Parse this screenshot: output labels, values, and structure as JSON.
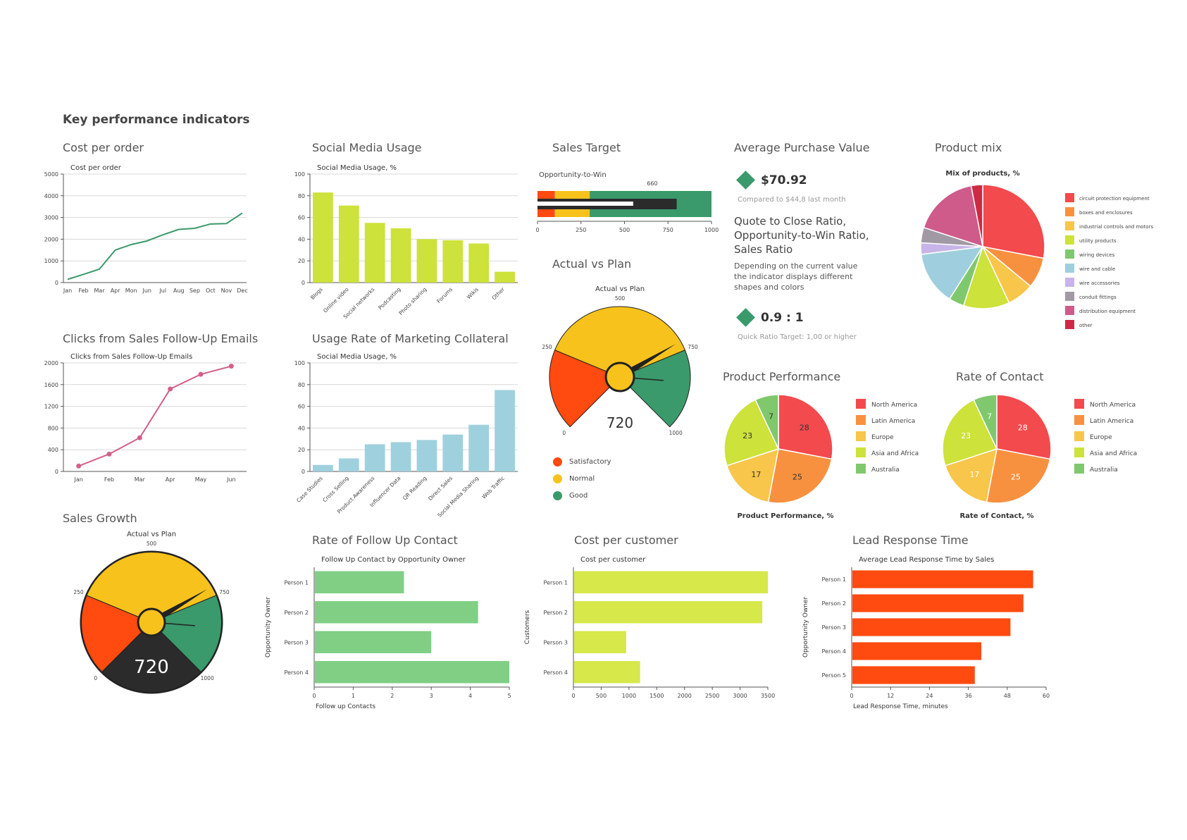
{
  "page_title": "Key performance indicators",
  "panels": {
    "cost_per_order": "Cost per order",
    "social_media": "Social Media Usage",
    "sales_target": "Sales Target",
    "avg_purchase": "Average Purchase Value",
    "product_mix": "Product mix",
    "clicks": "Clicks from Sales Follow-Up Emails",
    "usage_rate": "Usage Rate of Marketing Collateral",
    "actual_vs_plan": "Actual vs Plan",
    "product_performance": "Product Performance",
    "rate_of_contact": "Rate of Contact",
    "sales_growth": "Sales Growth",
    "follow_up": "Rate of Follow Up Contact",
    "cost_per_customer": "Cost per customer",
    "lead_response": "Lead Response Time"
  },
  "kpi": {
    "value": "$70.92",
    "compared": "Compared to $44,8 last month",
    "ratio_heading": "Quote to Close Ratio, Opportunity-to-Win Ratio, Sales Ratio",
    "description": "Depending on the current value the indicator displays different shapes and colors",
    "ratio_value": "0.9 : 1",
    "ratio_target": "Quick Ratio Target: 1,00 or higher",
    "accent": "#3a9a6b"
  },
  "gauge_legend": [
    {
      "label": "Satisfactory",
      "color": "#ff4a10"
    },
    {
      "label": "Normal",
      "color": "#f7c21c"
    },
    {
      "label": "Good",
      "color": "#3a9a6b"
    }
  ],
  "chart_data": [
    {
      "id": "cost_per_order",
      "type": "line",
      "title": "Cost per order",
      "categories": [
        "Jan",
        "Feb",
        "Mar",
        "Apr",
        "Mon",
        "Jun",
        "Jul",
        "Aug",
        "Sep",
        "Oct",
        "Nov",
        "Dec"
      ],
      "values": [
        150,
        380,
        620,
        1500,
        1750,
        1920,
        2200,
        2450,
        2500,
        2700,
        2720,
        3200
      ],
      "ylim": [
        0,
        5000
      ],
      "yticks": [
        "0",
        "1000",
        "2000",
        "3000",
        "4000",
        "5000"
      ],
      "color": "#3a9a6b"
    },
    {
      "id": "social_media",
      "type": "bar",
      "title": "Social Media Usage, %",
      "categories": [
        "Blogs",
        "Online video",
        "Social networks",
        "Podcasting",
        "Photo sharing",
        "Forums",
        "Wikis",
        "Other"
      ],
      "values": [
        83,
        71,
        55,
        50,
        40,
        39,
        36,
        10
      ],
      "ylim": [
        0,
        100
      ],
      "yticks": [
        "0",
        "20",
        "40",
        "60",
        "80",
        "100"
      ],
      "color": "#cde23a"
    },
    {
      "id": "clicks",
      "type": "line",
      "title": "Clicks from Sales Follow-Up Emails",
      "categories": [
        "Jan",
        "Feb",
        "Mar",
        "Apr",
        "May",
        "Jun"
      ],
      "values": [
        100,
        320,
        620,
        1520,
        1790,
        1940
      ],
      "ylim": [
        0,
        2000
      ],
      "yticks": [
        "0",
        "400",
        "800",
        "1200",
        "1600",
        "2000"
      ],
      "color": "#d1608a"
    },
    {
      "id": "usage_rate",
      "type": "bar",
      "title": "Social Media Usage, %",
      "categories": [
        "Case Studies",
        "Cross Selling",
        "Product Awareness",
        "Influencer Data",
        "QR Reading",
        "Direct Sales",
        "Social Media Sharing",
        "Web Traffic"
      ],
      "values": [
        6,
        12,
        25,
        27,
        29,
        34,
        43,
        75
      ],
      "ylim": [
        0,
        100
      ],
      "yticks": [
        "0",
        "20",
        "40",
        "60",
        "80",
        "100"
      ],
      "color": "#9fd0de"
    },
    {
      "id": "sales_target",
      "type": "bullet",
      "title": "Opportunity-to-Win",
      "target_label": "660",
      "target": 660,
      "bar_value": 800,
      "inner_value": 550,
      "ranges": [
        {
          "to": 100,
          "color": "#ff4a10"
        },
        {
          "to": 300,
          "color": "#f7c21c"
        },
        {
          "to": 1000,
          "color": "#3a9a6b"
        }
      ],
      "xlim": [
        0,
        1000
      ],
      "xticks": [
        "0",
        "250",
        "500",
        "750",
        "1000"
      ]
    },
    {
      "id": "actual_vs_plan",
      "type": "gauge",
      "title": "Actual vs Plan",
      "value": 720,
      "value_label": "720",
      "range": [
        0,
        1000
      ],
      "ticks": [
        "0",
        "250",
        "500",
        "750",
        "1000"
      ],
      "bands": [
        {
          "from": 0,
          "to": 250,
          "color": "#ff4a10"
        },
        {
          "from": 250,
          "to": 750,
          "color": "#f7c21c"
        },
        {
          "from": 750,
          "to": 1000,
          "color": "#3a9a6b"
        }
      ]
    },
    {
      "id": "sales_growth",
      "type": "gauge",
      "title": "Actual vs Plan",
      "value": 720,
      "value_label": "720",
      "range": [
        0,
        1000
      ],
      "ticks": [
        "0",
        "250",
        "500",
        "750",
        "1000"
      ],
      "bands": [
        {
          "from": 0,
          "to": 250,
          "color": "#ff4a10"
        },
        {
          "from": 250,
          "to": 750,
          "color": "#f7c21c"
        },
        {
          "from": 750,
          "to": 1000,
          "color": "#3a9a6b"
        }
      ]
    },
    {
      "id": "product_mix",
      "type": "pie",
      "title": "Mix of products, %",
      "labels": [
        "circuit protection equipment",
        "boxes and enclosures",
        "industrial controls and motors",
        "utility products",
        "wiring devices",
        "wire and cable",
        "wire accessories",
        "conduit fittings",
        "distribution equipment",
        "other"
      ],
      "values": [
        28,
        8,
        7,
        12,
        4,
        14,
        3,
        4,
        17,
        3
      ],
      "colors": [
        "#f34a4d",
        "#f7913f",
        "#f7c64a",
        "#cde23a",
        "#80c86d",
        "#9fcfde",
        "#c7b4e8",
        "#a19aa4",
        "#cf5b8a",
        "#cc2a46"
      ]
    },
    {
      "id": "product_performance",
      "type": "pie",
      "title": "Product Performance, %",
      "labels": [
        "North America",
        "Latin America",
        "Europe",
        "Asia and Africa",
        "Australia"
      ],
      "values": [
        28,
        25,
        17,
        23,
        7
      ],
      "colors": [
        "#f34a4d",
        "#f7913f",
        "#f7c64a",
        "#cde23a",
        "#80c86d"
      ]
    },
    {
      "id": "rate_of_contact",
      "type": "pie",
      "title": "Rate of Contact, %",
      "labels": [
        "North America",
        "Latin America",
        "Europe",
        "Asia and Africa",
        "Australia"
      ],
      "values": [
        28,
        25,
        17,
        23,
        7
      ],
      "colors": [
        "#f34a4d",
        "#f7913f",
        "#f7c64a",
        "#cde23a",
        "#80c86d"
      ]
    },
    {
      "id": "follow_up",
      "type": "hbar",
      "title": "Follow Up Contact by Opportunity Owner",
      "categories": [
        "Person 1",
        "Person 2",
        "Person 3",
        "Person 4"
      ],
      "values": [
        2.3,
        4.2,
        3.0,
        5.0
      ],
      "xlim": [
        0,
        5
      ],
      "xticks": [
        "0",
        "1",
        "2",
        "3",
        "4",
        "5"
      ],
      "xlabel": "Follow up Contacts",
      "ylabel": "Opportunity Owner",
      "color": "#80cf85"
    },
    {
      "id": "cost_per_customer",
      "type": "hbar",
      "title": "Cost per customer",
      "categories": [
        "Person 1",
        "Person 2",
        "Person 3",
        "Person 4"
      ],
      "values": [
        3500,
        3400,
        950,
        1200
      ],
      "xlim": [
        0,
        3500
      ],
      "xticks": [
        "0",
        "500",
        "1000",
        "1500",
        "2000",
        "2500",
        "3000",
        "3500"
      ],
      "xlabel": "",
      "ylabel": "Customers",
      "color": "#d6e84a"
    },
    {
      "id": "lead_response",
      "type": "hbar",
      "title": "Average Lead Response Time by Sales",
      "categories": [
        "Person 1",
        "Person 2",
        "Person 3",
        "Person 4",
        "Person 5"
      ],
      "values": [
        56,
        53,
        49,
        40,
        38
      ],
      "xlim": [
        0,
        60
      ],
      "xticks": [
        "0",
        "12",
        "24",
        "36",
        "48",
        "60"
      ],
      "xlabel": "Lead Response Time, minutes",
      "ylabel": "Opportunity Owner",
      "color": "#ff4a10"
    }
  ]
}
